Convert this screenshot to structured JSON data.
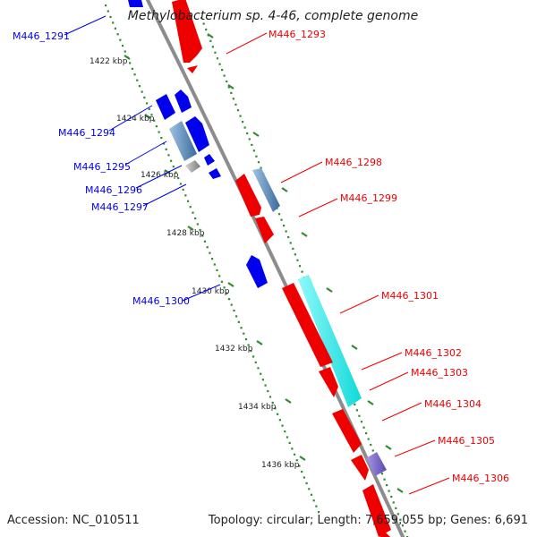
{
  "title": "Methylobacterium sp. 4-46, complete genome",
  "accession_text": "Accession: NC_010511",
  "summary_text": "Topology: circular; Length: 7,659,055 bp; Genes: 6,691",
  "colors": {
    "backbone": "#8c8c8c",
    "tick": "#2e8b2e",
    "minus_strand": "#0000ee",
    "plus_strand": "#ee0000",
    "steelblue": "#4f7fae",
    "gray": "#6e6e6e",
    "cyan": "#10ecec",
    "purple": "#7a65c8"
  },
  "kbp_labels": [
    "1422 kbp",
    "1424 kbp",
    "1426 kbp",
    "1428 kbp",
    "1430 kbp",
    "1432 kbp",
    "1434 kbp",
    "1436 kbp"
  ],
  "genes": [
    {
      "id": "M446_1291",
      "strand": "minus",
      "color": "minus_strand"
    },
    {
      "id": "M446_1293",
      "strand": "plus",
      "color": "plus_strand"
    },
    {
      "id": "M446_1294",
      "strand": "minus",
      "color": "minus_strand"
    },
    {
      "id": "M446_1295",
      "strand": "minus",
      "color": "steelblue"
    },
    {
      "id": "M446_1296",
      "strand": "minus",
      "color": "gray"
    },
    {
      "id": "M446_1297",
      "strand": "minus",
      "color": "minus_strand"
    },
    {
      "id": "M446_1298",
      "strand": "plus",
      "color": "steelblue"
    },
    {
      "id": "M446_1299",
      "strand": "plus",
      "color": "plus_strand"
    },
    {
      "id": "M446_1300",
      "strand": "minus",
      "color": "minus_strand"
    },
    {
      "id": "M446_1301",
      "strand": "plus",
      "color": "cyan"
    },
    {
      "id": "M446_1302",
      "strand": "plus",
      "color": "plus_strand"
    },
    {
      "id": "M446_1303",
      "strand": "plus",
      "color": "plus_strand"
    },
    {
      "id": "M446_1304",
      "strand": "plus",
      "color": "plus_strand"
    },
    {
      "id": "M446_1305",
      "strand": "plus",
      "color": "purple"
    },
    {
      "id": "M446_1306",
      "strand": "plus",
      "color": "plus_strand"
    }
  ]
}
